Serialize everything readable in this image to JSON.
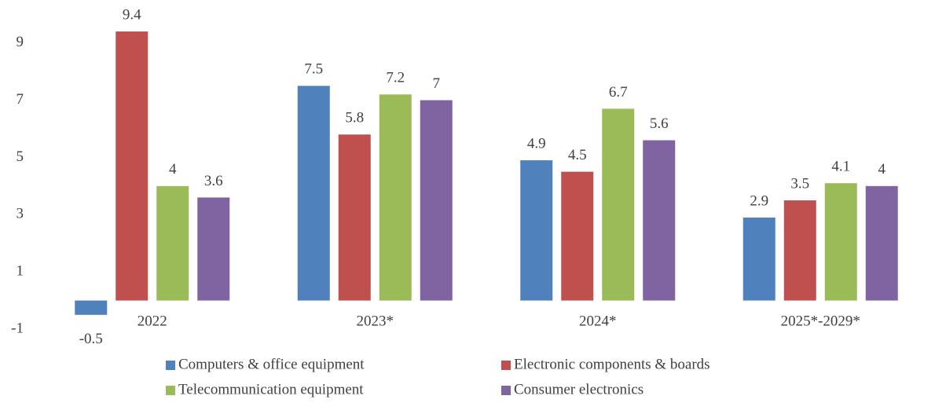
{
  "chart_data": {
    "type": "bar",
    "categories": [
      "2022",
      "2023*",
      "2024*",
      "2025*-2029*"
    ],
    "series": [
      {
        "name": "Computers & office equipment",
        "color": "#4f81bd",
        "values": [
          -0.5,
          7.5,
          4.9,
          2.9
        ]
      },
      {
        "name": "Electronic components & boards",
        "color": "#c0504d",
        "values": [
          9.4,
          5.8,
          4.5,
          3.5
        ]
      },
      {
        "name": "Telecommunication equipment",
        "color": "#9bbb59",
        "values": [
          4,
          7.2,
          6.7,
          4.1
        ]
      },
      {
        "name": "Consumer electronics",
        "color": "#8064a2",
        "values": [
          3.6,
          7,
          5.6,
          4
        ]
      }
    ],
    "ylim": [
      -1,
      10.5
    ],
    "yticks": [
      -1,
      1,
      3,
      5,
      7,
      9
    ],
    "grid": false,
    "legend": "bottom"
  }
}
